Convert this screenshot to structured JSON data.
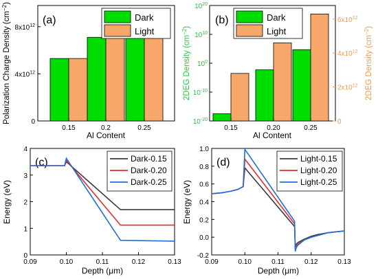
{
  "colors": {
    "dark": "#00dd00",
    "light": "#f8a76a",
    "bar_edge": "#000000",
    "right_axis": "#f09a4e",
    "left_axis_b": "#22c93a",
    "line_015": "#3a3a3a",
    "line_020": "#e8282a",
    "line_025": "#1e6fd9"
  },
  "chart_data": [
    {
      "panel": "(a)",
      "type": "bar",
      "categories": [
        "0.15",
        "0.2",
        "0.25"
      ],
      "series": [
        {
          "name": "Dark",
          "values": [
            5300000000000.0,
            7100000000000.0,
            9000000000000.0
          ]
        },
        {
          "name": "Light",
          "values": [
            5300000000000.0,
            7100000000000.0,
            9000000000000.0
          ]
        }
      ],
      "xlabel": "Al Content",
      "ylabel": "Polarization Charge Density (cm",
      "ylabel_sup": "−2",
      "ylabel_end": ")",
      "ylim": [
        0,
        9800000000000.0
      ],
      "yticks": [
        0,
        4000000000000.0,
        8000000000000.0
      ],
      "ytick_labels": [
        {
          "b": "0",
          "e": ""
        },
        {
          "b": "4x10",
          "e": "12"
        },
        {
          "b": "8x10",
          "e": "12"
        }
      ],
      "legend": "top-right",
      "grid": false
    },
    {
      "panel": "(b)",
      "type": "bar",
      "categories": [
        "0.15",
        "0.20",
        "0.25"
      ],
      "series": [
        {
          "name": "Dark",
          "values": [
            3e-18,
            0.005,
            50000.0
          ],
          "axis": "left-log"
        },
        {
          "name": "Light",
          "values": [
            2800000000000.0,
            4600000000000.0,
            6300000000000.0
          ],
          "axis": "right"
        }
      ],
      "xlabel": "Al Content",
      "ylabel_left": "2DEG Density (cm",
      "ylabel_left_sup": "−2",
      "ylabel_left_end": ")",
      "ylabel_right": "2DEG Density (cm",
      "ylabel_right_sup": "−2",
      "ylabel_right_end": ")",
      "ylim_left_log10": [
        -20,
        20
      ],
      "yticks_left": [
        {
          "b": "10",
          "e": "-20"
        },
        {
          "b": "10",
          "e": "-10"
        },
        {
          "b": "10",
          "e": "0"
        },
        {
          "b": "10",
          "e": "10"
        },
        {
          "b": "10",
          "e": "20"
        }
      ],
      "ylim_right": [
        0,
        6800000000000.0
      ],
      "yticks_right": [
        0,
        2000000000000.0,
        4000000000000.0,
        6000000000000.0
      ],
      "ytick_right_labels": [
        {
          "b": "0",
          "e": ""
        },
        {
          "b": "2x10",
          "e": "12"
        },
        {
          "b": "4x10",
          "e": "12"
        },
        {
          "b": "6x10",
          "e": "12"
        }
      ],
      "legend": "top-left",
      "grid": false
    },
    {
      "panel": "(c)",
      "type": "line",
      "xlabel": "Depth (μm)",
      "ylabel": "Energy (eV)",
      "xlim": [
        0.09,
        0.13
      ],
      "ylim": [
        0,
        4
      ],
      "xticks": [
        "0.09",
        "0.10",
        "0.11",
        "0.12",
        "0.13"
      ],
      "yticks": [
        "0",
        "1",
        "2",
        "3",
        "4"
      ],
      "legend": "top-right",
      "series": [
        {
          "name": "Dark-0.15",
          "x": [
            0.09,
            0.0995,
            0.1,
            0.115,
            0.13
          ],
          "y": [
            3.35,
            3.35,
            3.5,
            1.7,
            1.7
          ]
        },
        {
          "name": "Dark-0.20",
          "x": [
            0.09,
            0.0995,
            0.1,
            0.115,
            0.13
          ],
          "y": [
            3.35,
            3.35,
            3.55,
            1.12,
            1.12
          ]
        },
        {
          "name": "Dark-0.25",
          "x": [
            0.09,
            0.0995,
            0.1,
            0.115,
            0.13
          ],
          "y": [
            3.35,
            3.35,
            3.63,
            0.55,
            0.52
          ]
        }
      ]
    },
    {
      "panel": "(d)",
      "type": "line",
      "xlabel": "Depth (μm)",
      "ylabel": "Energy (eV)",
      "xlim": [
        0.09,
        0.13
      ],
      "ylim": [
        -0.2,
        1.0
      ],
      "xticks": [
        "0.09",
        "0.10",
        "0.11",
        "0.12",
        "0.13"
      ],
      "yticks": [
        "-0.2",
        "0.0",
        "0.2",
        "0.4",
        "0.6",
        "0.8",
        "1.0"
      ],
      "legend": "top-right",
      "series": [
        {
          "name": "Light-0.15",
          "x": [
            0.09,
            0.093,
            0.096,
            0.098,
            0.0995,
            0.1,
            0.115,
            0.1152,
            0.1155,
            0.116,
            0.117,
            0.118,
            0.12,
            0.122,
            0.125,
            0.13
          ],
          "y": [
            0.49,
            0.5,
            0.52,
            0.54,
            0.57,
            0.78,
            0.12,
            -0.1,
            -0.08,
            -0.06,
            -0.04,
            -0.02,
            0.01,
            0.03,
            0.05,
            0.07
          ]
        },
        {
          "name": "Light-0.20",
          "x": [
            0.09,
            0.093,
            0.096,
            0.098,
            0.0995,
            0.1,
            0.115,
            0.1152,
            0.1155,
            0.116,
            0.117,
            0.118,
            0.12,
            0.122,
            0.125,
            0.13
          ],
          "y": [
            0.49,
            0.5,
            0.52,
            0.54,
            0.57,
            0.88,
            0.15,
            -0.13,
            -0.1,
            -0.08,
            -0.05,
            -0.03,
            0.0,
            0.02,
            0.05,
            0.07
          ]
        },
        {
          "name": "Light-0.25",
          "x": [
            0.09,
            0.093,
            0.096,
            0.098,
            0.0995,
            0.1,
            0.115,
            0.1152,
            0.1155,
            0.116,
            0.117,
            0.118,
            0.12,
            0.122,
            0.125,
            0.13
          ],
          "y": [
            0.49,
            0.5,
            0.52,
            0.54,
            0.57,
            0.99,
            0.18,
            -0.16,
            -0.12,
            -0.09,
            -0.06,
            -0.03,
            0.0,
            0.02,
            0.05,
            0.07
          ]
        }
      ]
    }
  ]
}
